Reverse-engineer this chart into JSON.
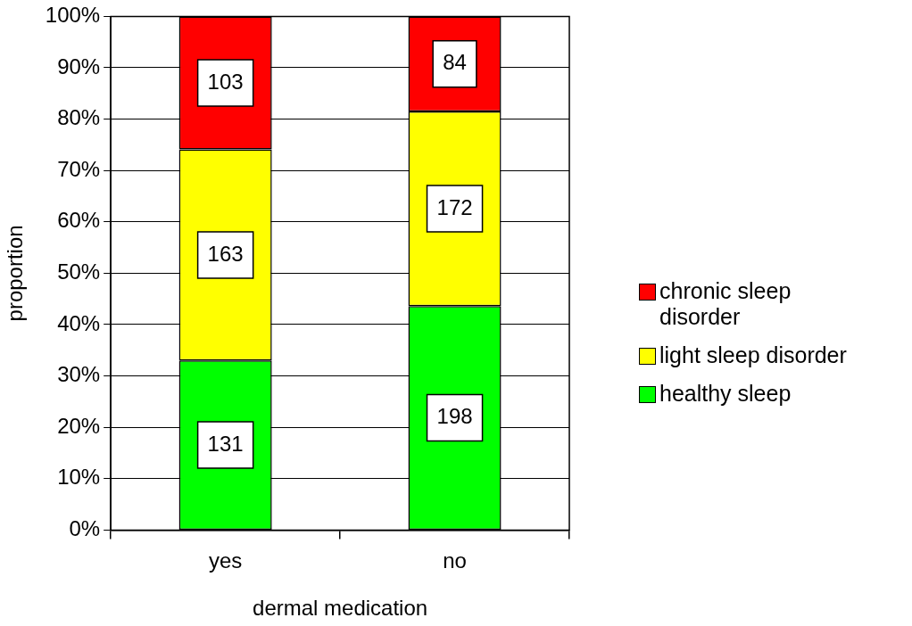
{
  "chart_data": {
    "type": "bar",
    "stacked": true,
    "xlabel": "dermal medication",
    "ylabel": "proportion",
    "categories": [
      "yes",
      "no"
    ],
    "series": [
      {
        "name": "healthy sleep",
        "color": "#00ff00",
        "values": [
          33.0,
          43.6
        ]
      },
      {
        "name": "light sleep disorder",
        "color": "#ffff00",
        "values": [
          41.1,
          37.9
        ]
      },
      {
        "name": "chronic sleep disorder",
        "color": "#ff0000",
        "values": [
          25.9,
          18.5
        ]
      }
    ],
    "annotations": [
      "131",
      "163",
      "103",
      "198",
      "172",
      "84"
    ],
    "ylim": [
      0,
      100
    ],
    "yticks": [
      {
        "value": 0,
        "label": "0%"
      },
      {
        "value": 10,
        "label": "10%"
      },
      {
        "value": 20,
        "label": "20%"
      },
      {
        "value": 30,
        "label": "30%"
      },
      {
        "value": 40,
        "label": "40%"
      },
      {
        "value": 50,
        "label": "50%"
      },
      {
        "value": 60,
        "label": "60%"
      },
      {
        "value": 70,
        "label": "70%"
      },
      {
        "value": 80,
        "label": "80%"
      },
      {
        "value": 90,
        "label": "90%"
      },
      {
        "value": 100,
        "label": "100%"
      }
    ],
    "grid": "y",
    "legend": "right"
  }
}
